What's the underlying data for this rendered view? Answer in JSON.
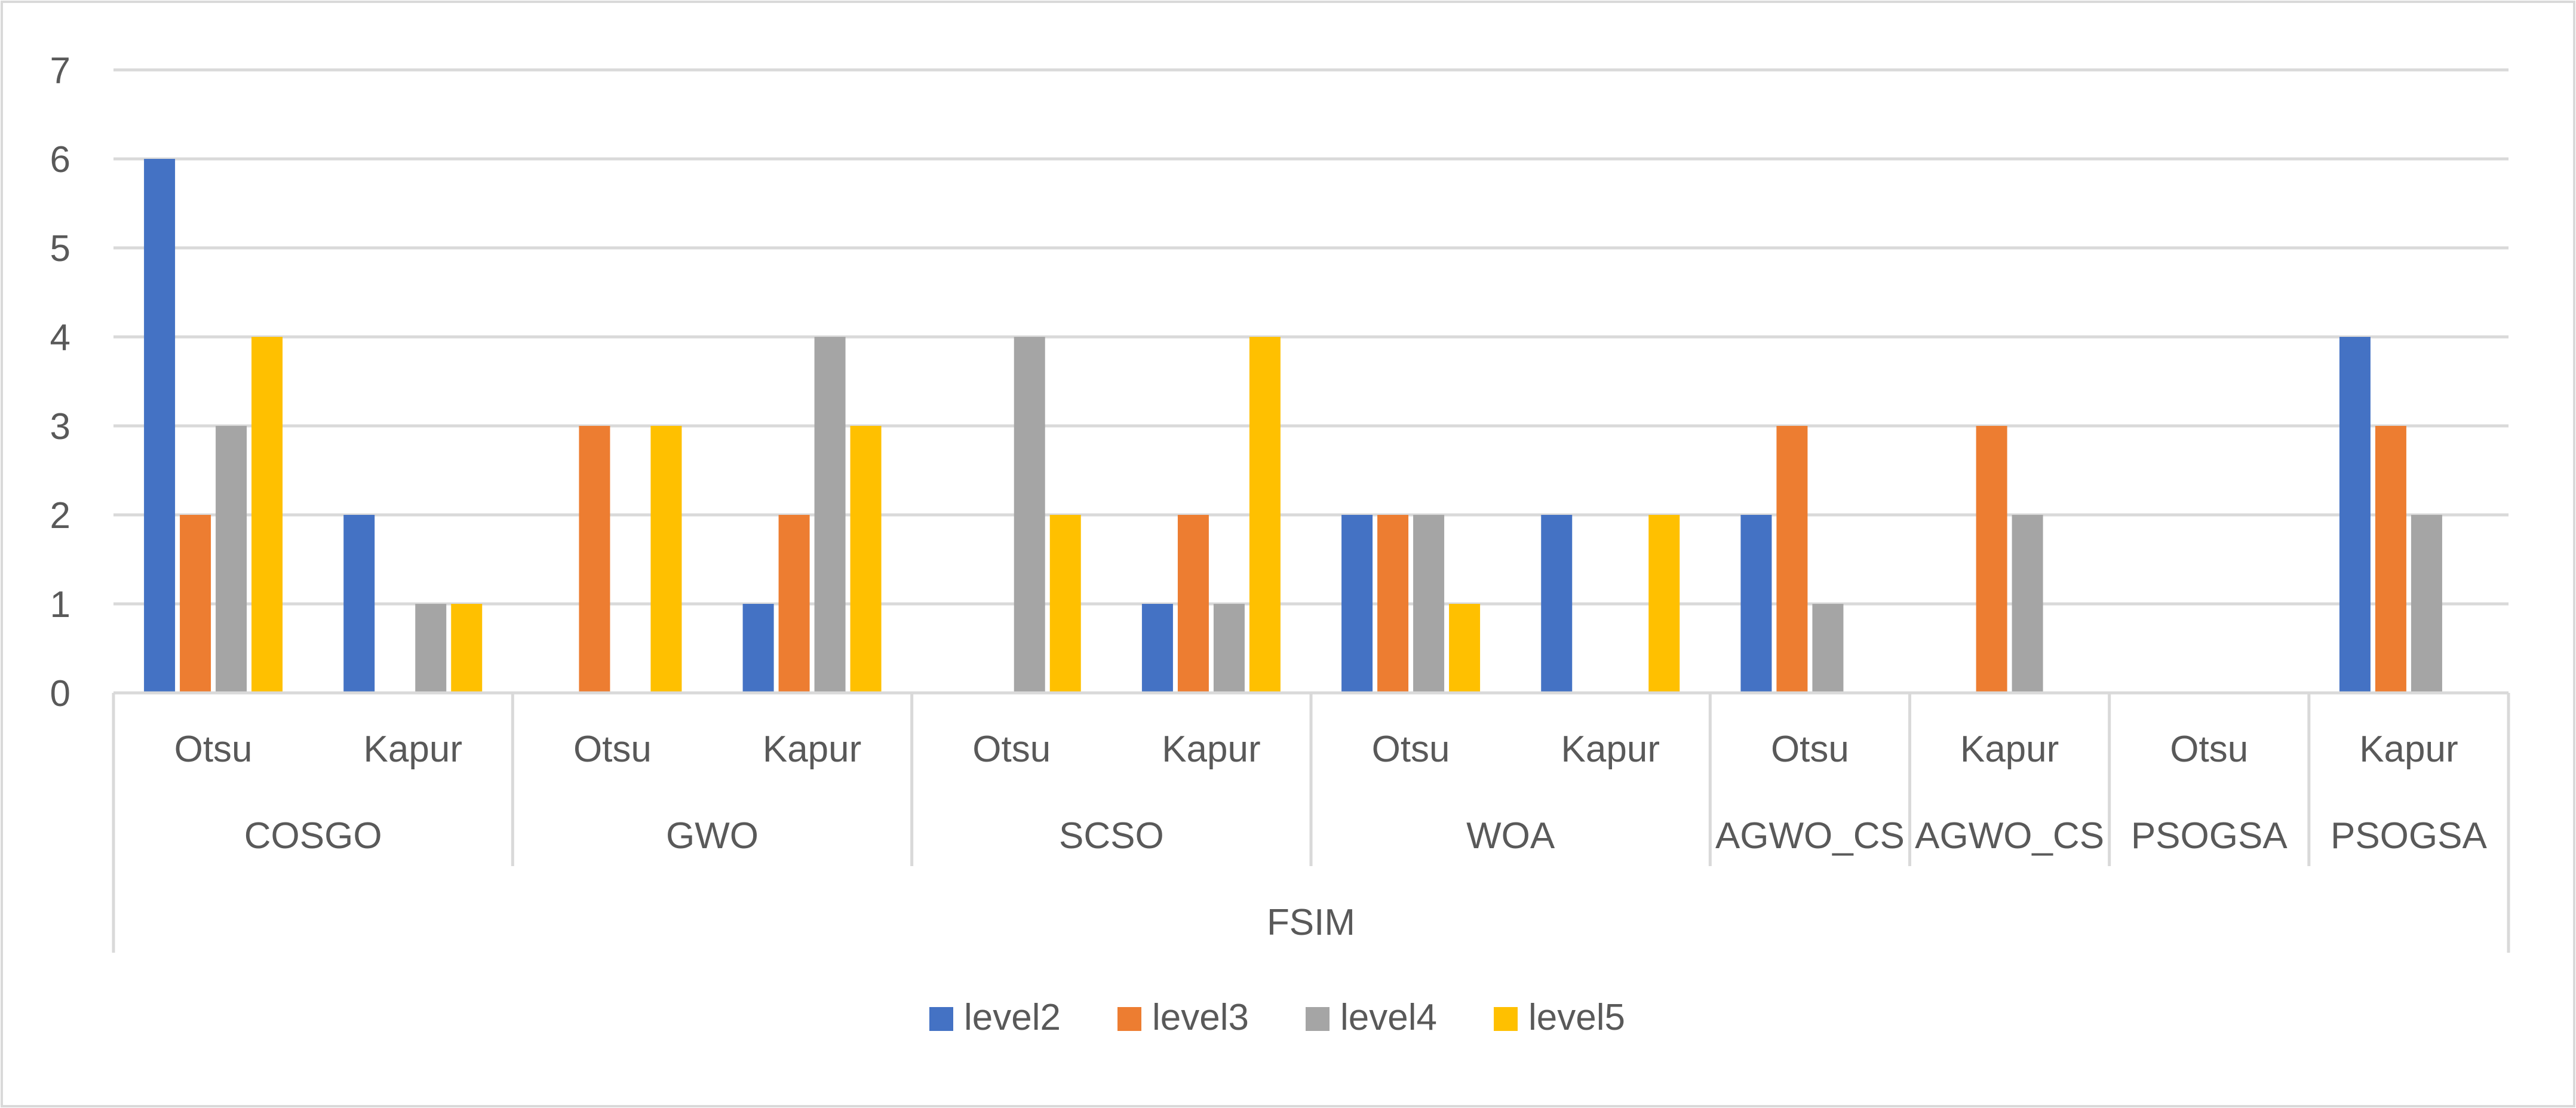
{
  "chart_data": {
    "type": "bar",
    "title": "",
    "xlabel": "FSIM",
    "ylabel": "",
    "ylim": [
      0,
      7
    ],
    "yticks": [
      0,
      1,
      2,
      3,
      4,
      5,
      6,
      7
    ],
    "grid": true,
    "legend_position": "bottom",
    "groups": [
      {
        "label": "COSGO",
        "subcategories": [
          "Otsu",
          "Kapur"
        ]
      },
      {
        "label": "GWO",
        "subcategories": [
          "Otsu",
          "Kapur"
        ]
      },
      {
        "label": "SCSO",
        "subcategories": [
          "Otsu",
          "Kapur"
        ]
      },
      {
        "label": "WOA",
        "subcategories": [
          "Otsu",
          "Kapur"
        ]
      },
      {
        "label": "AGWO_CS",
        "subcategories": [
          "Otsu"
        ]
      },
      {
        "label": "AGWO_CS",
        "subcategories": [
          "Kapur"
        ]
      },
      {
        "label": "PSOGSA",
        "subcategories": [
          "Otsu"
        ]
      },
      {
        "label": "PSOGSA",
        "subcategories": [
          "Kapur"
        ]
      }
    ],
    "categories": [
      "Otsu",
      "Kapur",
      "Otsu",
      "Kapur",
      "Otsu",
      "Kapur",
      "Otsu",
      "Kapur",
      "Otsu",
      "Kapur",
      "Otsu",
      "Kapur"
    ],
    "series": [
      {
        "name": "level2",
        "color": "#4472C4",
        "values": [
          6,
          2,
          0,
          1,
          0,
          1,
          2,
          2,
          2,
          0,
          0,
          4
        ]
      },
      {
        "name": "level3",
        "color": "#ED7D31",
        "values": [
          2,
          0,
          3,
          2,
          0,
          2,
          2,
          0,
          3,
          3,
          0,
          3
        ]
      },
      {
        "name": "level4",
        "color": "#A5A5A5",
        "values": [
          3,
          1,
          0,
          4,
          4,
          1,
          2,
          0,
          1,
          2,
          0,
          2
        ]
      },
      {
        "name": "level5",
        "color": "#FFC000",
        "values": [
          4,
          1,
          3,
          3,
          2,
          4,
          1,
          2,
          0,
          0,
          0,
          0
        ]
      }
    ]
  }
}
